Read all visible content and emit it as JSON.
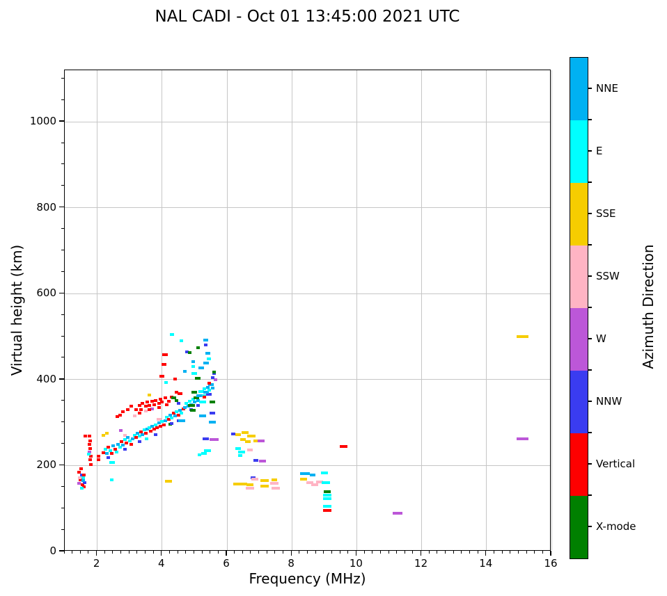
{
  "chart_data": {
    "type": "scatter",
    "title": "NAL CADI - Oct 01 13:45:00 2021 UTC",
    "xlabel": "Frequency (MHz)",
    "ylabel": "Virtual height (km)",
    "colorbar_label": "Azimuth Direction",
    "xlim": [
      1,
      16
    ],
    "ylim": [
      0,
      1120
    ],
    "xticks": [
      2,
      4,
      6,
      8,
      10,
      12,
      14,
      16
    ],
    "yticks": [
      0,
      200,
      400,
      600,
      800,
      1000
    ],
    "x_minor_step": 0.25,
    "y_minor_step": 50,
    "grid": true,
    "legend_position": "right-colorbar",
    "directions": [
      {
        "key": "NNE",
        "label": "NNE",
        "color": "#00b1f2"
      },
      {
        "key": "E",
        "label": "E",
        "color": "#00ffff"
      },
      {
        "key": "SSE",
        "label": "SSE",
        "color": "#f6cd00"
      },
      {
        "key": "SSW",
        "label": "SSW",
        "color": "#ffb4c4"
      },
      {
        "key": "W",
        "label": "W",
        "color": "#bc57d8"
      },
      {
        "key": "NNW",
        "label": "NNW",
        "color": "#3a3cf0"
      },
      {
        "key": "V",
        "label": "Vertical",
        "color": "#fe0000"
      },
      {
        "key": "X",
        "label": "X-mode",
        "color": "#008000"
      }
    ],
    "points": [
      [
        1.45,
        185,
        "V"
      ],
      [
        1.5,
        192,
        "V"
      ],
      [
        1.52,
        178,
        "NNW"
      ],
      [
        1.56,
        172,
        "E"
      ],
      [
        1.48,
        166,
        "V"
      ],
      [
        1.44,
        158,
        "W"
      ],
      [
        1.55,
        155,
        "V"
      ],
      [
        1.6,
        150,
        "V"
      ],
      [
        1.62,
        161,
        "NNW"
      ],
      [
        1.58,
        178,
        "V"
      ],
      [
        1.52,
        148,
        "E"
      ],
      [
        1.47,
        172,
        "SSW"
      ],
      [
        1.57,
        165,
        "NNE"
      ],
      [
        1.64,
        268,
        "V"
      ],
      [
        1.76,
        268,
        "V"
      ],
      [
        1.78,
        258,
        "V"
      ],
      [
        1.76,
        249,
        "V"
      ],
      [
        1.79,
        240,
        "V"
      ],
      [
        1.77,
        231,
        "W"
      ],
      [
        1.8,
        222,
        "V"
      ],
      [
        1.78,
        213,
        "V"
      ],
      [
        1.74,
        227,
        "E"
      ],
      [
        1.8,
        202,
        "V"
      ],
      [
        2.05,
        222,
        "V"
      ],
      [
        2.05,
        213,
        "V"
      ],
      [
        2.45,
        207,
        "E",
        8
      ],
      [
        2.45,
        167,
        "E"
      ],
      [
        2.2,
        230,
        "V"
      ],
      [
        2.2,
        270,
        "SSE"
      ],
      [
        2.25,
        238,
        "E"
      ],
      [
        2.3,
        228,
        "NNE"
      ],
      [
        2.3,
        275,
        "SSE"
      ],
      [
        2.35,
        243,
        "V"
      ],
      [
        2.4,
        235,
        "E"
      ],
      [
        2.45,
        228,
        "V"
      ],
      [
        2.5,
        246,
        "NNE"
      ],
      [
        2.55,
        238,
        "V"
      ],
      [
        2.6,
        232,
        "E"
      ],
      [
        2.35,
        218,
        "NNW"
      ],
      [
        2.65,
        250,
        "NNE"
      ],
      [
        2.7,
        243,
        "E"
      ],
      [
        2.72,
        281,
        "W"
      ],
      [
        2.75,
        255,
        "V"
      ],
      [
        2.8,
        248,
        "NNE"
      ],
      [
        2.85,
        260,
        "E"
      ],
      [
        2.85,
        270,
        "SSW"
      ],
      [
        2.9,
        252,
        "V"
      ],
      [
        2.95,
        265,
        "NNE"
      ],
      [
        3.0,
        258,
        "E"
      ],
      [
        3.05,
        250,
        "V"
      ],
      [
        2.85,
        238,
        "NNW"
      ],
      [
        3.1,
        262,
        "NNE"
      ],
      [
        3.15,
        270,
        "E"
      ],
      [
        3.15,
        315,
        "SSW"
      ],
      [
        3.2,
        265,
        "V"
      ],
      [
        3.25,
        275,
        "NNE"
      ],
      [
        3.3,
        268,
        "E"
      ],
      [
        3.35,
        278,
        "V"
      ],
      [
        3.4,
        272,
        "NNE"
      ],
      [
        3.45,
        283,
        "E"
      ],
      [
        3.5,
        275,
        "V"
      ],
      [
        3.5,
        327,
        "SSW"
      ],
      [
        3.55,
        285,
        "NNE"
      ],
      [
        3.3,
        255,
        "NNW"
      ],
      [
        3.52,
        262,
        "E"
      ],
      [
        3.6,
        288,
        "E"
      ],
      [
        3.6,
        364,
        "SSE"
      ],
      [
        3.65,
        280,
        "V"
      ],
      [
        3.7,
        292,
        "NNE"
      ],
      [
        3.7,
        332,
        "W"
      ],
      [
        3.75,
        285,
        "V"
      ],
      [
        3.8,
        295,
        "E"
      ],
      [
        3.85,
        288,
        "V"
      ],
      [
        3.9,
        300,
        "NNE"
      ],
      [
        3.9,
        308,
        "SSW",
        7
      ],
      [
        3.95,
        292,
        "V"
      ],
      [
        4.0,
        303,
        "E"
      ],
      [
        4.05,
        295,
        "V"
      ],
      [
        3.8,
        272,
        "NNW"
      ],
      [
        2.62,
        314,
        "V"
      ],
      [
        2.7,
        318,
        "V"
      ],
      [
        2.8,
        325,
        "V"
      ],
      [
        2.95,
        330,
        "V"
      ],
      [
        3.05,
        338,
        "V"
      ],
      [
        3.2,
        330,
        "V"
      ],
      [
        3.3,
        340,
        "V"
      ],
      [
        3.35,
        330,
        "V"
      ],
      [
        3.4,
        345,
        "V"
      ],
      [
        3.5,
        338,
        "V"
      ],
      [
        3.55,
        348,
        "V"
      ],
      [
        3.6,
        340,
        "V"
      ],
      [
        3.7,
        350,
        "V"
      ],
      [
        3.75,
        342,
        "V"
      ],
      [
        3.8,
        352,
        "V"
      ],
      [
        3.9,
        345,
        "V"
      ],
      [
        3.95,
        355,
        "V"
      ],
      [
        4.0,
        348,
        "V"
      ],
      [
        4.1,
        357,
        "V"
      ],
      [
        4.2,
        350,
        "V"
      ],
      [
        4.3,
        360,
        "V"
      ],
      [
        3.3,
        322,
        "V"
      ],
      [
        3.6,
        330,
        "V"
      ],
      [
        3.9,
        335,
        "V"
      ],
      [
        4.15,
        342,
        "V"
      ],
      [
        4.55,
        368,
        "V",
        7
      ],
      [
        4.45,
        370,
        "V"
      ],
      [
        4.4,
        402,
        "V"
      ],
      [
        4.0,
        408,
        "V",
        7
      ],
      [
        4.05,
        435,
        "V",
        7
      ],
      [
        4.1,
        458,
        "V",
        8
      ],
      [
        4.1,
        305,
        "NNE"
      ],
      [
        4.15,
        312,
        "E"
      ],
      [
        4.2,
        308,
        "V"
      ],
      [
        4.25,
        318,
        "NNE"
      ],
      [
        4.25,
        296,
        "X"
      ],
      [
        4.3,
        310,
        "E"
      ],
      [
        4.35,
        322,
        "V"
      ],
      [
        4.4,
        315,
        "NNE"
      ],
      [
        4.45,
        325,
        "E"
      ],
      [
        4.5,
        318,
        "V"
      ],
      [
        4.55,
        328,
        "NNE"
      ],
      [
        4.6,
        322,
        "E"
      ],
      [
        4.65,
        332,
        "V"
      ],
      [
        4.3,
        298,
        "NNW"
      ],
      [
        4.5,
        305,
        "NNW"
      ],
      [
        4.6,
        305,
        "NNE",
        10
      ],
      [
        4.35,
        358,
        "X",
        7
      ],
      [
        4.45,
        352,
        "X"
      ],
      [
        4.5,
        345,
        "NNW"
      ],
      [
        4.7,
        335,
        "NNE"
      ],
      [
        4.75,
        345,
        "E"
      ],
      [
        4.8,
        338,
        "NNE"
      ],
      [
        4.85,
        350,
        "E"
      ],
      [
        4.9,
        342,
        "NNE"
      ],
      [
        4.95,
        355,
        "E"
      ],
      [
        5.0,
        348,
        "NNE"
      ],
      [
        5.05,
        358,
        "E"
      ],
      [
        5.1,
        352,
        "NNE"
      ],
      [
        4.9,
        330,
        "NNW"
      ],
      [
        5.1,
        340,
        "NNW"
      ],
      [
        4.9,
        340,
        "X",
        10
      ],
      [
        4.95,
        328,
        "X",
        8
      ],
      [
        5.0,
        370,
        "X",
        8
      ],
      [
        5.05,
        358,
        "X",
        8
      ],
      [
        5.25,
        315,
        "NNE",
        10
      ],
      [
        5.25,
        362,
        "E",
        10
      ],
      [
        5.25,
        348,
        "E",
        10
      ],
      [
        5.45,
        365,
        "NNW",
        8
      ],
      [
        5.55,
        322,
        "NNW",
        8
      ],
      [
        5.55,
        348,
        "X",
        8
      ],
      [
        5.55,
        301,
        "NNE",
        10
      ],
      [
        5.15,
        362,
        "NNE",
        8
      ],
      [
        5.2,
        372,
        "E",
        8
      ],
      [
        5.3,
        378,
        "E"
      ],
      [
        5.35,
        370,
        "NNE",
        8
      ],
      [
        5.4,
        382,
        "NNE"
      ],
      [
        5.45,
        375,
        "E"
      ],
      [
        5.5,
        388,
        "NNE",
        8
      ],
      [
        5.55,
        380,
        "NNE"
      ],
      [
        5.45,
        392,
        "V"
      ],
      [
        5.3,
        360,
        "V"
      ],
      [
        5.6,
        415,
        "NNW"
      ],
      [
        5.65,
        400,
        "W"
      ],
      [
        5.6,
        418,
        "X"
      ],
      [
        4.12,
        393,
        "E"
      ],
      [
        4.3,
        505,
        "E",
        6
      ],
      [
        4.6,
        490,
        "E"
      ],
      [
        4.76,
        465,
        "NNW"
      ],
      [
        4.85,
        463,
        "X"
      ],
      [
        4.95,
        430,
        "E"
      ],
      [
        4.95,
        442,
        "NNE"
      ],
      [
        5.0,
        415,
        "E",
        8
      ],
      [
        5.1,
        403,
        "X",
        8
      ],
      [
        4.7,
        420,
        "NNE"
      ],
      [
        5.1,
        475,
        "X"
      ],
      [
        5.2,
        428,
        "NNE",
        8
      ],
      [
        5.35,
        492,
        "NNE",
        7
      ],
      [
        5.35,
        480,
        "NNW"
      ],
      [
        5.4,
        462,
        "NNE",
        7
      ],
      [
        5.35,
        438,
        "NNE",
        8
      ],
      [
        5.45,
        448,
        "E",
        6
      ],
      [
        5.55,
        405,
        "NNW"
      ],
      [
        5.15,
        225,
        "E"
      ],
      [
        5.35,
        262,
        "NNW",
        9
      ],
      [
        5.6,
        260,
        "W",
        13
      ],
      [
        5.4,
        235,
        "E",
        10
      ],
      [
        5.3,
        229,
        "E",
        8
      ],
      [
        4.2,
        163,
        "SSE",
        10
      ],
      [
        6.2,
        274,
        "NNW",
        6
      ],
      [
        6.35,
        272,
        "SSE",
        8
      ],
      [
        6.55,
        276,
        "SSE",
        10
      ],
      [
        6.75,
        268,
        "SSE",
        12
      ],
      [
        6.5,
        260,
        "SSE",
        8
      ],
      [
        6.65,
        255,
        "SSE",
        8
      ],
      [
        6.9,
        258,
        "SSE",
        8
      ],
      [
        7.05,
        258,
        "W",
        10
      ],
      [
        6.35,
        240,
        "E",
        8
      ],
      [
        6.45,
        232,
        "E",
        10
      ],
      [
        6.4,
        224,
        "E",
        6
      ],
      [
        6.7,
        237,
        "SSW",
        8
      ],
      [
        6.9,
        212,
        "NNW",
        7
      ],
      [
        7.1,
        210,
        "W",
        10
      ],
      [
        6.3,
        157,
        "SSE",
        10
      ],
      [
        6.5,
        157,
        "SSE",
        12
      ],
      [
        6.7,
        155,
        "SSE",
        10
      ],
      [
        6.8,
        172,
        "NNW",
        7
      ],
      [
        6.85,
        168,
        "SSW",
        10
      ],
      [
        6.7,
        148,
        "SSW",
        12
      ],
      [
        7.15,
        165,
        "SSE",
        12
      ],
      [
        7.15,
        152,
        "SSE",
        12
      ],
      [
        7.45,
        158,
        "SSW",
        12
      ],
      [
        7.5,
        148,
        "SSW",
        12
      ],
      [
        7.45,
        166,
        "SSE",
        8
      ],
      [
        8.4,
        182,
        "NNE",
        14
      ],
      [
        8.65,
        178,
        "NNE",
        8
      ],
      [
        9.0,
        183,
        "E",
        10
      ],
      [
        8.35,
        168,
        "SSE",
        10
      ],
      [
        8.55,
        160,
        "SSW",
        10
      ],
      [
        8.85,
        162,
        "SSW",
        10
      ],
      [
        8.7,
        156,
        "SSW",
        10
      ],
      [
        9.05,
        160,
        "E",
        12
      ],
      [
        9.1,
        140,
        "X",
        10
      ],
      [
        9.1,
        131,
        "E",
        12
      ],
      [
        9.1,
        123,
        "E",
        12
      ],
      [
        9.1,
        105,
        "E",
        12
      ],
      [
        9.1,
        95,
        "V",
        12
      ],
      [
        9.6,
        245,
        "V",
        11
      ],
      [
        11.25,
        89,
        "W",
        14
      ],
      [
        15.1,
        500,
        "SSE",
        17
      ],
      [
        15.1,
        263,
        "W",
        17
      ]
    ]
  }
}
